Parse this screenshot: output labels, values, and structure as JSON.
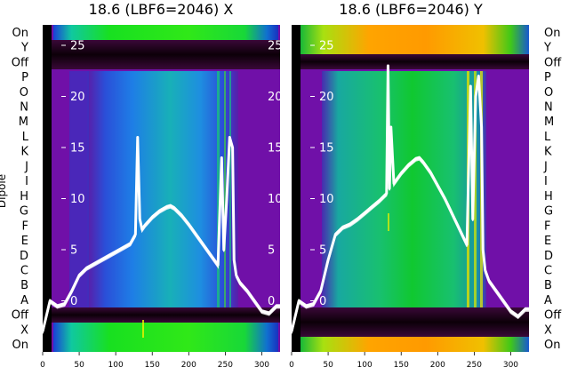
{
  "chart_data": {
    "type": "heatmap",
    "ylabel": "Dipole",
    "x_ticks": [
      0,
      50,
      100,
      150,
      200,
      250,
      300
    ],
    "xlim": [
      0,
      325
    ],
    "row_labels": [
      "On",
      "Y",
      "Off",
      "P",
      "O",
      "N",
      "M",
      "L",
      "K",
      "J",
      "I",
      "H",
      "G",
      "F",
      "E",
      "D",
      "C",
      "B",
      "A",
      "Off",
      "X",
      "On"
    ],
    "overlay_ticks": [
      25,
      20,
      15,
      10,
      5,
      0
    ],
    "overlay_ylim": [
      -5,
      27
    ],
    "panels": [
      {
        "title": "18.6 (LBF6=2046) X",
        "overlay_series": {
          "x": [
            0,
            10,
            20,
            30,
            40,
            50,
            60,
            70,
            80,
            90,
            100,
            110,
            120,
            127,
            130,
            133,
            136,
            140,
            150,
            160,
            170,
            175,
            180,
            190,
            200,
            210,
            220,
            230,
            240,
            245,
            248,
            252,
            256,
            260,
            262,
            265,
            270,
            280,
            290,
            300,
            310,
            320,
            325
          ],
          "y": [
            -3,
            0,
            -0.5,
            -0.3,
            1,
            2.5,
            3.2,
            3.6,
            4,
            4.4,
            4.8,
            5.2,
            5.6,
            6.5,
            16,
            8,
            7,
            7.4,
            8.2,
            8.8,
            9.2,
            9.3,
            9.1,
            8.4,
            7.5,
            6.5,
            5.5,
            4.5,
            3.5,
            14,
            5,
            10,
            16,
            15,
            4,
            2.5,
            1.8,
            1,
            0,
            -1,
            -1.2,
            -0.5,
            -0.5
          ]
        }
      },
      {
        "title": "18.6 (LBF6=2046) Y",
        "overlay_series": {
          "x": [
            0,
            10,
            20,
            30,
            40,
            50,
            60,
            70,
            80,
            90,
            100,
            110,
            120,
            130,
            132,
            134,
            136,
            140,
            150,
            160,
            170,
            175,
            180,
            190,
            200,
            210,
            220,
            230,
            240,
            245,
            248,
            252,
            256,
            260,
            262,
            265,
            270,
            280,
            290,
            300,
            310,
            320,
            325
          ],
          "y": [
            -3,
            0,
            -0.5,
            -0.3,
            1,
            4,
            6.5,
            7.2,
            7.5,
            8,
            8.6,
            9.2,
            9.8,
            10.5,
            23,
            11,
            17,
            11.5,
            12.5,
            13.3,
            13.9,
            14,
            13.6,
            12.6,
            11.3,
            10,
            8.5,
            7,
            5.5,
            21,
            8,
            20,
            22,
            17,
            5,
            3,
            2,
            1,
            0,
            -1,
            -1.5,
            -0.8,
            -0.8
          ]
        }
      }
    ]
  },
  "colors": {
    "purple": "#7010a8",
    "dark": "#1a0418",
    "blue": "#1e7ee6",
    "teal": "#18b4b0",
    "green": "#18d838",
    "orange": "#ffa400",
    "yellow": "#f0f000",
    "line": "#ffffff"
  }
}
